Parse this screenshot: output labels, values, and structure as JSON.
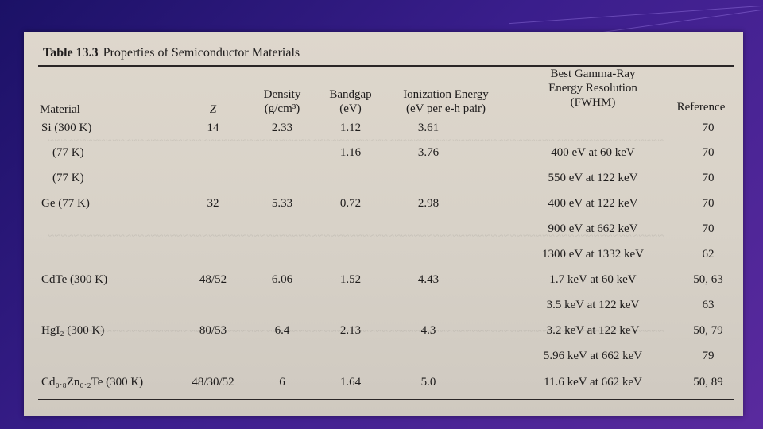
{
  "table": {
    "number_label": "Table 13.3",
    "title": "Properties of Semiconductor Materials",
    "headers": {
      "material": "Material",
      "z": "Z",
      "density_line1": "Density",
      "density_line2": "(g/cm³)",
      "bandgap_line1": "Bandgap",
      "bandgap_line2": "(eV)",
      "ionization_line1": "Ionization Energy",
      "ionization_line2": "(eV per e-h pair)",
      "resolution_line1": "Best Gamma-Ray",
      "resolution_line2": "Energy Resolution",
      "resolution_line3": "(FWHM)",
      "reference": "Reference"
    },
    "rows": [
      {
        "material": "Si (300 K)",
        "z": "14",
        "density": "2.33",
        "bandgap": "1.12",
        "ionization": "3.61",
        "resolution": "",
        "reference": "70"
      },
      {
        "material": "(77 K)",
        "z": "",
        "density": "",
        "bandgap": "1.16",
        "ionization": "3.76",
        "resolution": "400 eV at 60 keV",
        "reference": "70"
      },
      {
        "material": "(77 K)",
        "z": "",
        "density": "",
        "bandgap": "",
        "ionization": "",
        "resolution": "550 eV at 122 keV",
        "reference": "70"
      },
      {
        "material": "Ge (77 K)",
        "z": "32",
        "density": "5.33",
        "bandgap": "0.72",
        "ionization": "2.98",
        "resolution": "400 eV at 122 keV",
        "reference": "70"
      },
      {
        "material": "",
        "z": "",
        "density": "",
        "bandgap": "",
        "ionization": "",
        "resolution": "900 eV at 662 keV",
        "reference": "70"
      },
      {
        "material": "",
        "z": "",
        "density": "",
        "bandgap": "",
        "ionization": "",
        "resolution": "1300 eV at 1332 keV",
        "reference": "62"
      },
      {
        "material": "CdTe (300 K)",
        "z": "48/52",
        "density": "6.06",
        "bandgap": "1.52",
        "ionization": "4.43",
        "resolution": "1.7 keV at 60 keV",
        "reference": "50, 63"
      },
      {
        "material": "",
        "z": "",
        "density": "",
        "bandgap": "",
        "ionization": "",
        "resolution": "3.5 keV at 122 keV",
        "reference": "63"
      },
      {
        "material": "HgI₂ (300 K)",
        "z": "80/53",
        "density": "6.4",
        "bandgap": "2.13",
        "ionization": "4.3",
        "resolution": "3.2 keV at 122 keV",
        "reference": "50, 79"
      },
      {
        "material": "",
        "z": "",
        "density": "",
        "bandgap": "",
        "ionization": "",
        "resolution": "5.96 keV at 662 keV",
        "reference": "79"
      },
      {
        "material": "Cd₀.₈Zn₀.₂Te (300 K)",
        "z": "48/30/52",
        "density": "6",
        "bandgap": "1.64",
        "ionization": "5.0",
        "resolution": "11.6 keV at 662 keV",
        "reference": "50, 89"
      }
    ]
  }
}
